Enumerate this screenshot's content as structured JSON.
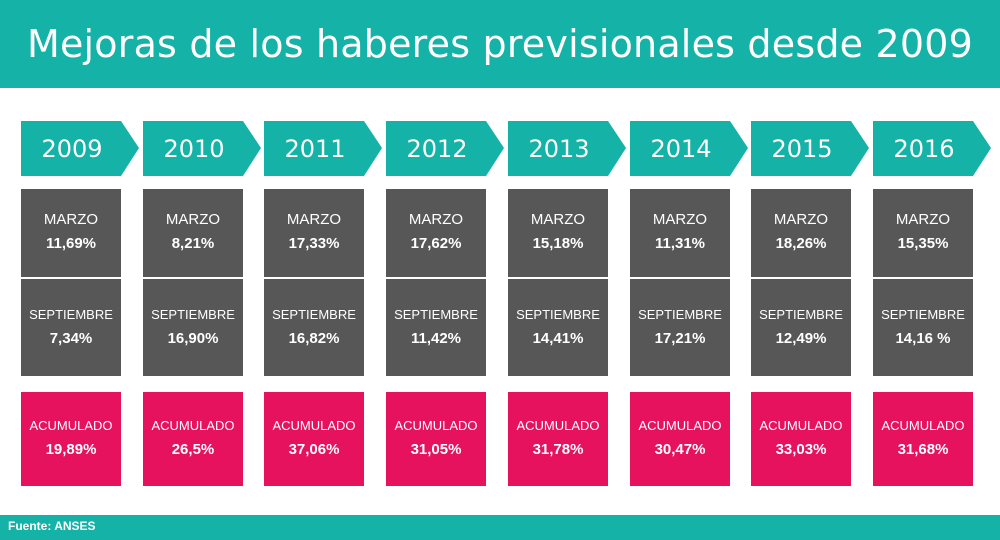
{
  "title": "Mejoras de los haberes previsionales desde 2009",
  "source": "Fuente: ANSES",
  "colors": {
    "teal": "#14b2a7",
    "gray": "#575757",
    "pink": "#e6125d"
  },
  "chart_data": {
    "type": "table",
    "title": "Mejoras de los haberes previsionales desde 2009",
    "row_labels": [
      "MARZO",
      "SEPTIEMBRE",
      "ACUMULADO"
    ],
    "columns": [
      {
        "year": "2009",
        "marzo": "11,69%",
        "septiembre": "7,34%",
        "acumulado": "19,89%"
      },
      {
        "year": "2010",
        "marzo": "8,21%",
        "septiembre": "16,90%",
        "acumulado": "26,5%"
      },
      {
        "year": "2011",
        "marzo": "17,33%",
        "septiembre": "16,82%",
        "acumulado": "37,06%"
      },
      {
        "year": "2012",
        "marzo": "17,62%",
        "septiembre": "11,42%",
        "acumulado": "31,05%"
      },
      {
        "year": "2013",
        "marzo": "15,18%",
        "septiembre": "14,41%",
        "acumulado": "31,78%"
      },
      {
        "year": "2014",
        "marzo": "11,31%",
        "septiembre": "17,21%",
        "acumulado": "30,47%"
      },
      {
        "year": "2015",
        "marzo": "18,26%",
        "septiembre": "12,49%",
        "acumulado": "33,03%"
      },
      {
        "year": "2016",
        "marzo": "15,35%",
        "septiembre": "14,16 %",
        "acumulado": "31,68%"
      }
    ]
  }
}
